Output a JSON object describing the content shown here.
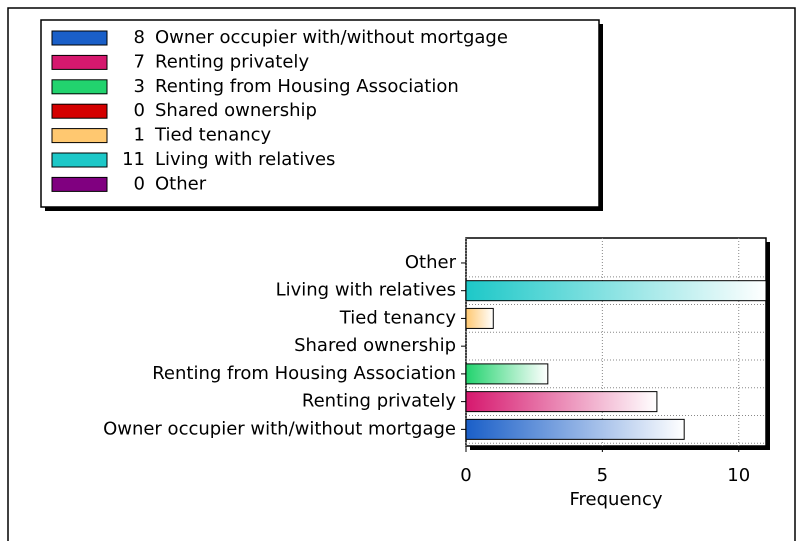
{
  "chart_data": {
    "type": "bar",
    "orientation": "horizontal",
    "categories": [
      "Owner occupier with/without mortgage",
      "Renting privately",
      "Renting from Housing Association",
      "Shared ownership",
      "Tied tenancy",
      "Living with relatives",
      "Other"
    ],
    "values": [
      8,
      7,
      3,
      0,
      1,
      11,
      0
    ],
    "colors": [
      "#1a5fc8",
      "#d6186e",
      "#22d36e",
      "#d40000",
      "#ffc870",
      "#1dc8c8",
      "#800080"
    ],
    "xlabel": "Frequency",
    "xlim": [
      0,
      11
    ],
    "xticks": [
      0,
      5,
      10
    ],
    "grid": true,
    "legend": "top-left"
  }
}
